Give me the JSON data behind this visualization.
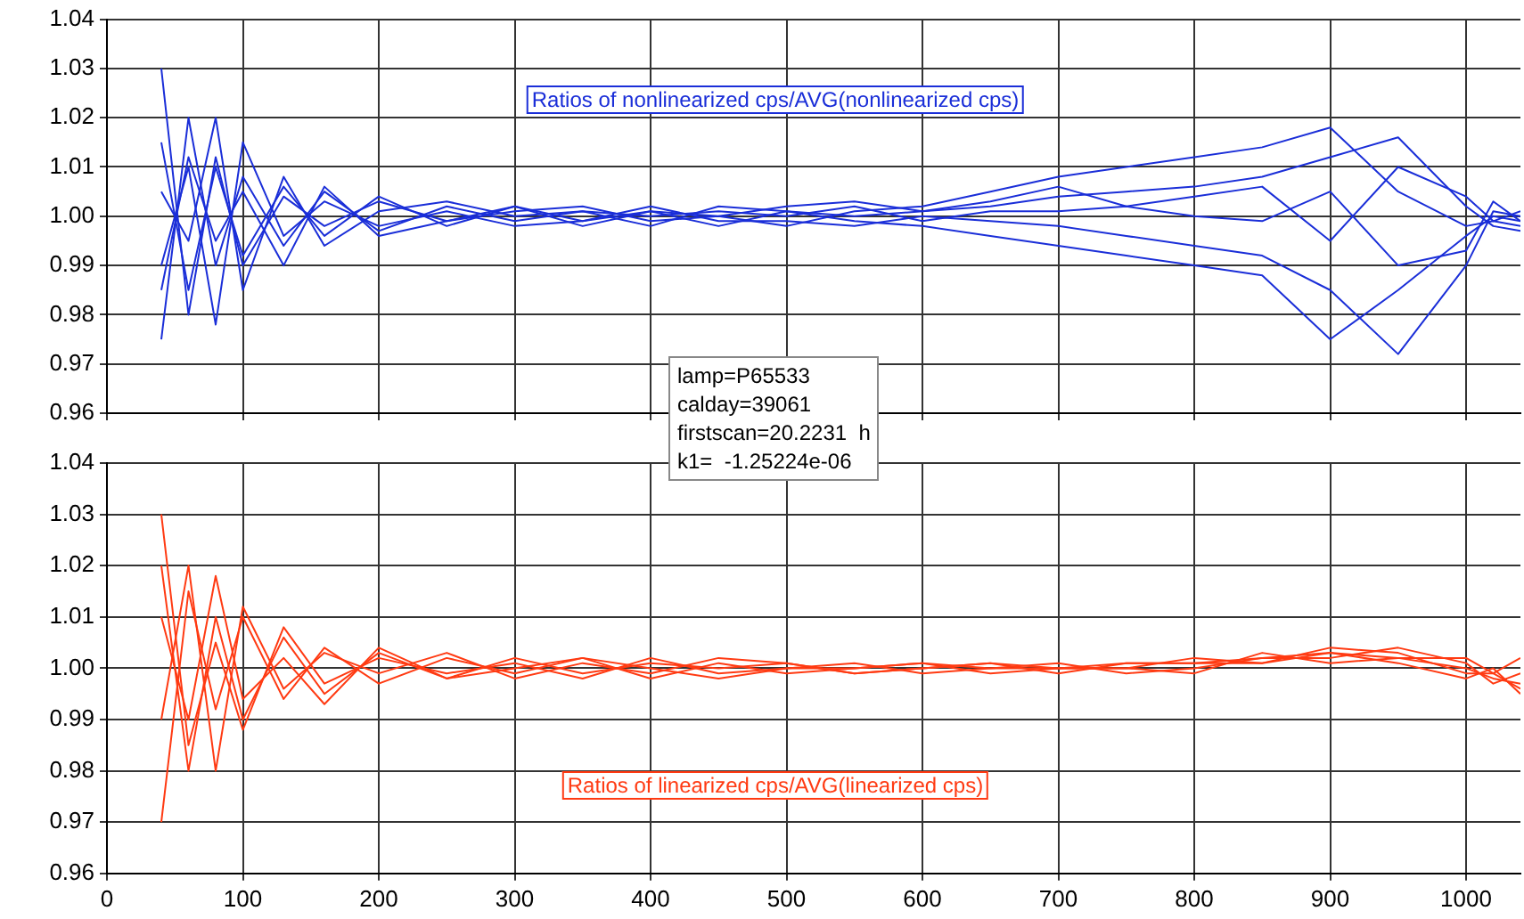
{
  "chart_data": [
    {
      "type": "line",
      "x": [
        40,
        60,
        80,
        100,
        130,
        160,
        200,
        250,
        300,
        350,
        400,
        450,
        500,
        550,
        600,
        650,
        700,
        750,
        800,
        850,
        900,
        950,
        1000,
        1020,
        1040
      ],
      "xlim": [
        0,
        1040
      ],
      "xticks": [
        0,
        100,
        200,
        300,
        400,
        500,
        600,
        700,
        800,
        900,
        1000
      ],
      "ylim": [
        0.96,
        1.04
      ],
      "yticks": [
        0.96,
        0.97,
        0.98,
        0.99,
        {
          "value": 1,
          "label": "1.00"
        },
        1.01,
        1.02,
        1.03,
        1.04
      ],
      "tick_labels": "y",
      "grid": true,
      "legend": false,
      "marker": "none",
      "line_style": "solid",
      "annotations": [
        "Ratios of nonlinearized cps/AVG(nonlinearized cps)",
        "lamp=P65533\ncalday=39061\nfirstscan=20.2231  h\nk1=  -1.25224e-06"
      ],
      "series": [
        {
          "color": "#1a2ed8",
          "values": [
            1.015,
            0.985,
            1.01,
            0.992,
            1.006,
            0.996,
            1.004,
            0.998,
            1.002,
            0.999,
            1.001,
            1.0,
            0.998,
            1.001,
            1.002,
            1.005,
            1.008,
            1.01,
            1.012,
            1.014,
            1.018,
            1.005,
            0.998,
            0.999,
            0.998
          ]
        },
        {
          "color": "#1a2ed8",
          "values": [
            0.975,
            1.02,
            0.99,
            1.008,
            0.994,
            1.005,
            0.997,
            1.002,
            0.999,
            1.001,
            0.998,
            1.002,
            1.001,
            0.999,
            0.998,
            0.996,
            0.994,
            0.992,
            0.99,
            0.988,
            0.975,
            0.985,
            0.996,
            1.0,
            0.999
          ]
        },
        {
          "color": "#1a2ed8",
          "values": [
            1.03,
            0.98,
            1.012,
            0.99,
            1.004,
            0.998,
            1.003,
            0.999,
            1.001,
            1.002,
            0.999,
            1.0,
            1.002,
            1.003,
            1.001,
            1.002,
            1.004,
            1.005,
            1.006,
            1.008,
            1.012,
            1.016,
            1.002,
            0.998,
            0.997
          ]
        },
        {
          "color": "#1a2ed8",
          "values": [
            0.99,
            1.01,
            0.978,
            1.015,
            0.996,
            1.003,
            0.998,
            1.001,
            0.998,
            0.999,
            1.002,
            0.999,
            0.999,
            0.998,
            1.0,
            0.999,
            0.998,
            0.996,
            0.994,
            0.992,
            0.985,
            0.972,
            0.99,
            1.001,
            1.0
          ]
        },
        {
          "color": "#1a2ed8",
          "values": [
            1.005,
            0.995,
            1.02,
            0.985,
            1.008,
            0.994,
            1.001,
            1.003,
            1.0,
            1.001,
            1.0,
            1.001,
            1.0,
            1.002,
            0.999,
            1.001,
            1.001,
            1.002,
            1.0,
            0.999,
            1.005,
            0.99,
            0.993,
            1.003,
            0.999
          ]
        },
        {
          "color": "#1a2ed8",
          "values": [
            0.985,
            1.012,
            0.995,
            1.005,
            0.99,
            1.006,
            0.996,
            0.999,
            1.002,
            0.998,
            1.001,
            0.998,
            1.001,
            1.0,
            1.001,
            1.003,
            1.006,
            1.002,
            1.004,
            1.006,
            0.995,
            1.01,
            1.004,
            0.999,
            1.001
          ]
        }
      ]
    },
    {
      "type": "line",
      "x": [
        40,
        60,
        80,
        100,
        130,
        160,
        200,
        250,
        300,
        350,
        400,
        450,
        500,
        550,
        600,
        650,
        700,
        750,
        800,
        850,
        900,
        950,
        1000,
        1020,
        1040
      ],
      "xlim": [
        0,
        1040
      ],
      "xticks": [
        0,
        100,
        200,
        300,
        400,
        500,
        600,
        700,
        800,
        900,
        1000
      ],
      "ylim": [
        0.96,
        1.04
      ],
      "yticks": [
        0.96,
        0.97,
        0.98,
        0.99,
        {
          "value": 1,
          "label": "1.00"
        },
        1.01,
        1.02,
        1.03,
        1.04
      ],
      "grid": true,
      "legend": false,
      "marker": "none",
      "line_style": "solid",
      "annotations": [
        "Ratios of linearized cps/AVG(linearized cps)"
      ],
      "series": [
        {
          "color": "#ff3a12",
          "values": [
            1.02,
            0.98,
            1.01,
            0.99,
            1.006,
            0.995,
            1.003,
            0.998,
            1.002,
            0.999,
            1.001,
            1.0,
            1.001,
            0.999,
            1.0,
            1.001,
            1.0,
            1.001,
            1.001,
            1.002,
            1.003,
            1.002,
            1.0,
            0.998,
            0.997
          ]
        },
        {
          "color": "#ff3a12",
          "values": [
            0.97,
            1.015,
            0.992,
            1.01,
            0.994,
            1.004,
            0.997,
            1.002,
            0.999,
            1.002,
            0.998,
            1.001,
            0.999,
            1.0,
            1.001,
            0.999,
            1.0,
            1.0,
            1.002,
            1.001,
            1.004,
            1.003,
            0.999,
            0.999,
            0.996
          ]
        },
        {
          "color": "#ff3a12",
          "values": [
            1.03,
            0.985,
            1.005,
            0.988,
            1.008,
            0.997,
            1.002,
            0.999,
            1.001,
            0.998,
            1.002,
            0.999,
            1.0,
            1.001,
            0.999,
            1.0,
            1.001,
            0.999,
            1.0,
            1.002,
            1.002,
            1.004,
            1.001,
            0.997,
            0.999
          ]
        },
        {
          "color": "#ff3a12",
          "values": [
            0.99,
            1.02,
            0.98,
            1.012,
            0.996,
            1.003,
            0.999,
            1.003,
            0.998,
            1.001,
            0.999,
            1.002,
            1.001,
            0.999,
            1.0,
            1.001,
            0.999,
            1.001,
            1.001,
            1.001,
            1.003,
            1.001,
            0.998,
            1.0,
            0.995
          ]
        },
        {
          "color": "#ff3a12",
          "values": [
            1.01,
            0.99,
            1.018,
            0.994,
            1.002,
            0.993,
            1.004,
            0.998,
            1.0,
            1.002,
            1.0,
            0.998,
            1.0,
            1.0,
            1.001,
            1.0,
            1.0,
            1.0,
            0.999,
            1.003,
            1.001,
            1.002,
            1.002,
            0.999,
            1.002
          ]
        }
      ]
    }
  ]
}
